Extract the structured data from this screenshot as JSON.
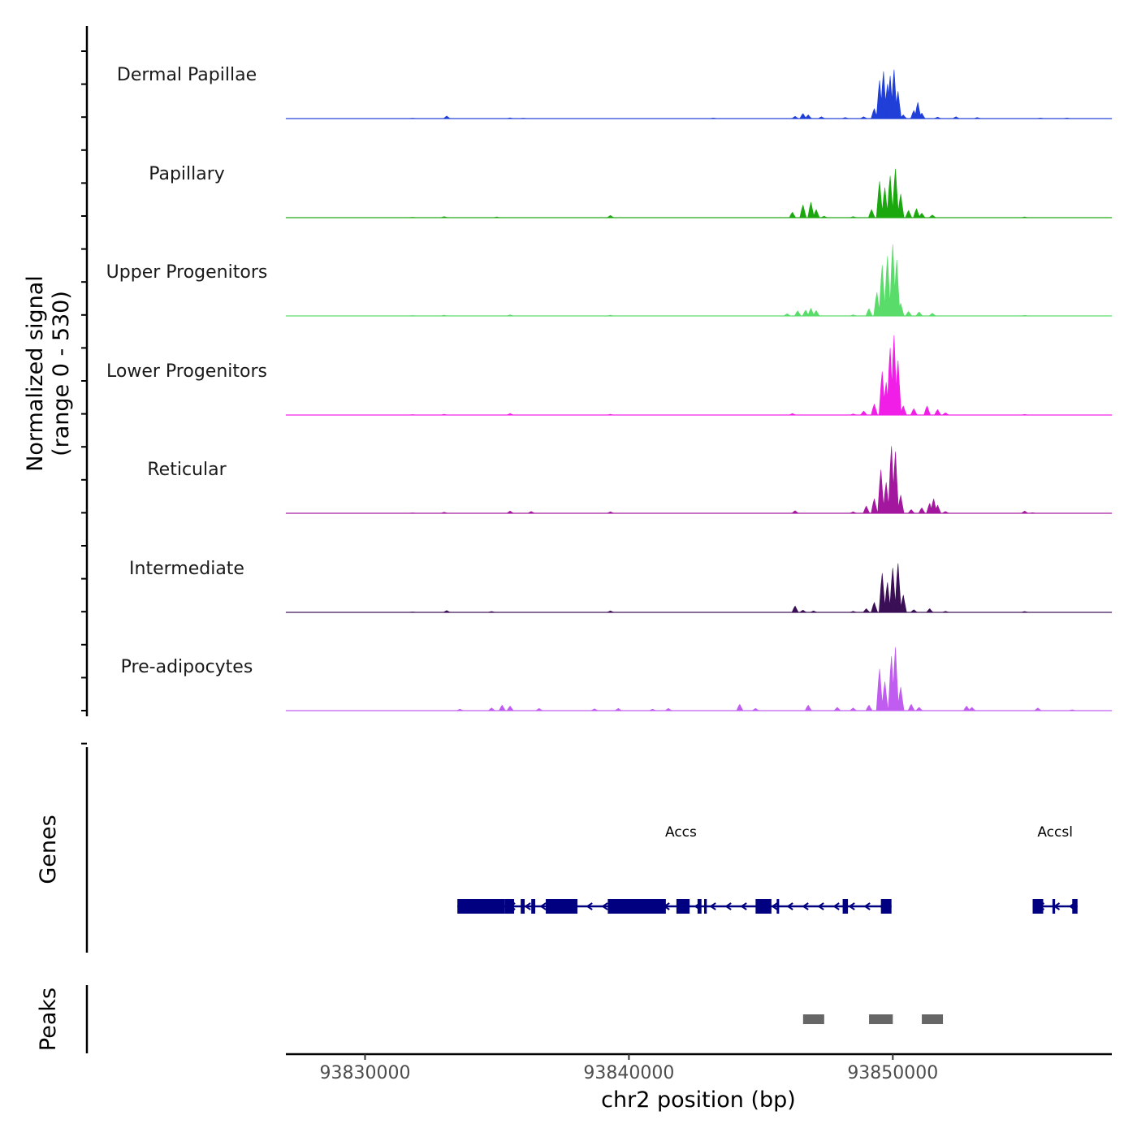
{
  "chart_data": {
    "type": "area",
    "region": {
      "chrom": "chr2",
      "start": 93827000,
      "end": 93858300
    },
    "x_ticks": [
      93830000,
      93840000,
      93850000
    ],
    "x_tick_labels": [
      "93830000",
      "93840000",
      "93850000"
    ],
    "xlabel": "chr2 position (bp)",
    "ylabel_line1": "Normalized signal",
    "ylabel_line2": "(range 0 - 530)",
    "ylim": [
      0,
      530
    ],
    "series": [
      {
        "name": "Dermal Papillae",
        "color": "#1F3FD8",
        "points": [
          [
            93831800,
            2
          ],
          [
            93833100,
            14
          ],
          [
            93835500,
            4
          ],
          [
            93836000,
            2
          ],
          [
            93843200,
            3
          ],
          [
            93846300,
            12
          ],
          [
            93846600,
            28
          ],
          [
            93846800,
            20
          ],
          [
            93847300,
            10
          ],
          [
            93848200,
            6
          ],
          [
            93848900,
            10
          ],
          [
            93849300,
            55
          ],
          [
            93849500,
            210
          ],
          [
            93849650,
            260
          ],
          [
            93849800,
            190
          ],
          [
            93849900,
            235
          ],
          [
            93850050,
            270
          ],
          [
            93850200,
            150
          ],
          [
            93850400,
            20
          ],
          [
            93850800,
            45
          ],
          [
            93850950,
            90
          ],
          [
            93851100,
            30
          ],
          [
            93851700,
            8
          ],
          [
            93852400,
            10
          ],
          [
            93853200,
            6
          ],
          [
            93855600,
            3
          ],
          [
            93856600,
            3
          ]
        ]
      },
      {
        "name": "Papillary",
        "color": "#1BA80E",
        "points": [
          [
            93831800,
            2
          ],
          [
            93833000,
            6
          ],
          [
            93835000,
            4
          ],
          [
            93839300,
            12
          ],
          [
            93846200,
            30
          ],
          [
            93846600,
            70
          ],
          [
            93846900,
            85
          ],
          [
            93847100,
            45
          ],
          [
            93847400,
            8
          ],
          [
            93848500,
            6
          ],
          [
            93849200,
            45
          ],
          [
            93849500,
            200
          ],
          [
            93849700,
            165
          ],
          [
            93849900,
            230
          ],
          [
            93850100,
            270
          ],
          [
            93850300,
            130
          ],
          [
            93850600,
            40
          ],
          [
            93850900,
            50
          ],
          [
            93851100,
            25
          ],
          [
            93851500,
            15
          ],
          [
            93855000,
            4
          ]
        ]
      },
      {
        "name": "Upper Progenitors",
        "color": "#5ADC6A",
        "points": [
          [
            93831800,
            2
          ],
          [
            93833000,
            4
          ],
          [
            93835500,
            6
          ],
          [
            93839300,
            4
          ],
          [
            93846000,
            12
          ],
          [
            93846400,
            28
          ],
          [
            93846700,
            32
          ],
          [
            93846900,
            42
          ],
          [
            93847100,
            30
          ],
          [
            93848500,
            6
          ],
          [
            93849100,
            40
          ],
          [
            93849400,
            130
          ],
          [
            93849600,
            280
          ],
          [
            93849800,
            330
          ],
          [
            93850000,
            395
          ],
          [
            93850150,
            310
          ],
          [
            93850300,
            70
          ],
          [
            93850600,
            25
          ],
          [
            93851000,
            22
          ],
          [
            93851500,
            15
          ],
          [
            93855000,
            3
          ]
        ]
      },
      {
        "name": "Lower Progenitors",
        "color": "#F01EE6",
        "points": [
          [
            93831800,
            2
          ],
          [
            93833000,
            4
          ],
          [
            93835500,
            8
          ],
          [
            93839300,
            4
          ],
          [
            93846200,
            8
          ],
          [
            93848500,
            6
          ],
          [
            93848900,
            22
          ],
          [
            93849300,
            60
          ],
          [
            93849600,
            240
          ],
          [
            93849750,
            180
          ],
          [
            93849900,
            370
          ],
          [
            93850050,
            440
          ],
          [
            93850200,
            300
          ],
          [
            93850400,
            50
          ],
          [
            93850800,
            35
          ],
          [
            93851300,
            50
          ],
          [
            93851700,
            30
          ],
          [
            93852000,
            12
          ],
          [
            93855000,
            3
          ]
        ]
      },
      {
        "name": "Reticular",
        "color": "#A3169E",
        "points": [
          [
            93831800,
            2
          ],
          [
            93833000,
            6
          ],
          [
            93835500,
            12
          ],
          [
            93836300,
            10
          ],
          [
            93839300,
            8
          ],
          [
            93846300,
            14
          ],
          [
            93848500,
            8
          ],
          [
            93849000,
            40
          ],
          [
            93849300,
            80
          ],
          [
            93849550,
            240
          ],
          [
            93849750,
            170
          ],
          [
            93849950,
            370
          ],
          [
            93850100,
            340
          ],
          [
            93850300,
            100
          ],
          [
            93850700,
            20
          ],
          [
            93851100,
            30
          ],
          [
            93851400,
            55
          ],
          [
            93851550,
            80
          ],
          [
            93851700,
            45
          ],
          [
            93852000,
            10
          ],
          [
            93855000,
            12
          ],
          [
            93855300,
            3
          ]
        ]
      },
      {
        "name": "Intermediate",
        "color": "#3B0F55",
        "points": [
          [
            93831800,
            2
          ],
          [
            93833100,
            10
          ],
          [
            93834800,
            5
          ],
          [
            93839300,
            8
          ],
          [
            93846300,
            35
          ],
          [
            93846600,
            12
          ],
          [
            93847000,
            8
          ],
          [
            93848500,
            6
          ],
          [
            93849000,
            20
          ],
          [
            93849300,
            55
          ],
          [
            93849600,
            215
          ],
          [
            93849800,
            165
          ],
          [
            93850000,
            245
          ],
          [
            93850200,
            270
          ],
          [
            93850400,
            95
          ],
          [
            93850800,
            15
          ],
          [
            93851400,
            20
          ],
          [
            93852000,
            6
          ],
          [
            93855000,
            5
          ]
        ]
      },
      {
        "name": "Pre-adipocytes",
        "color": "#C05CF0",
        "points": [
          [
            93833600,
            8
          ],
          [
            93834800,
            15
          ],
          [
            93835200,
            30
          ],
          [
            93835500,
            25
          ],
          [
            93836600,
            12
          ],
          [
            93838700,
            10
          ],
          [
            93839600,
            12
          ],
          [
            93840900,
            8
          ],
          [
            93841500,
            12
          ],
          [
            93844200,
            35
          ],
          [
            93844800,
            12
          ],
          [
            93846800,
            30
          ],
          [
            93847900,
            18
          ],
          [
            93848500,
            15
          ],
          [
            93849100,
            30
          ],
          [
            93849500,
            230
          ],
          [
            93849700,
            160
          ],
          [
            93849950,
            300
          ],
          [
            93850100,
            350
          ],
          [
            93850300,
            130
          ],
          [
            93850700,
            35
          ],
          [
            93851000,
            18
          ],
          [
            93852800,
            25
          ],
          [
            93853000,
            18
          ],
          [
            93855500,
            15
          ],
          [
            93856800,
            5
          ]
        ]
      }
    ],
    "genes": [
      {
        "name": "Accs",
        "strand": "-",
        "start": 93833500,
        "end": 93849950,
        "exons": [
          [
            93833500,
            93835300
          ],
          [
            93835300,
            93835650
          ],
          [
            93835900,
            93836050
          ],
          [
            93836300,
            93836450
          ],
          [
            93836850,
            93838050
          ],
          [
            93839200,
            93841400
          ],
          [
            93841800,
            93842300
          ],
          [
            93842600,
            93842750
          ],
          [
            93842850,
            93842950
          ],
          [
            93844800,
            93845400
          ],
          [
            93845600,
            93845650
          ],
          [
            93848100,
            93848300
          ],
          [
            93849550,
            93849950
          ]
        ]
      },
      {
        "name": "Accsl",
        "strand": "-",
        "start": 93855300,
        "end": 93857000,
        "exons": [
          [
            93855300,
            93855700
          ],
          [
            93856050,
            93856150
          ],
          [
            93856800,
            93857000
          ]
        ]
      }
    ],
    "peaks_label": "Peaks",
    "genes_label": "Genes",
    "peaks": [
      [
        93846600,
        93847400
      ],
      [
        93849100,
        93850000
      ],
      [
        93851100,
        93851900
      ]
    ]
  }
}
